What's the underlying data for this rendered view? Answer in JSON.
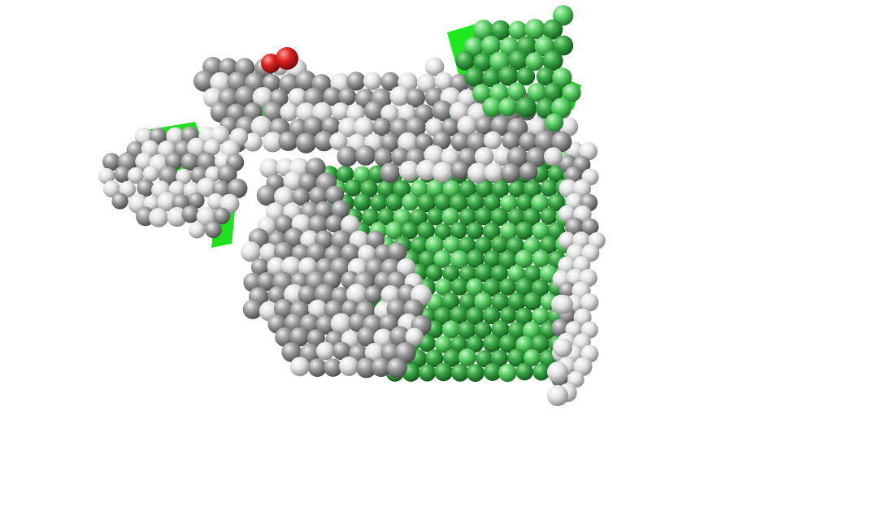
{
  "viewer": {
    "background": "#ffffff"
  },
  "structure": {
    "representation": "spacefill-molecular-assembly",
    "regions": [
      {
        "name": "green-sheet",
        "color": "#2e9b3a"
      },
      {
        "name": "grey-body",
        "color": "#9a9a9a"
      },
      {
        "name": "light-edge",
        "color": "#e6e6e6"
      },
      {
        "name": "green-ribbon",
        "color": "#19e619"
      },
      {
        "name": "red-atoms",
        "color": "#dd2222"
      }
    ]
  }
}
